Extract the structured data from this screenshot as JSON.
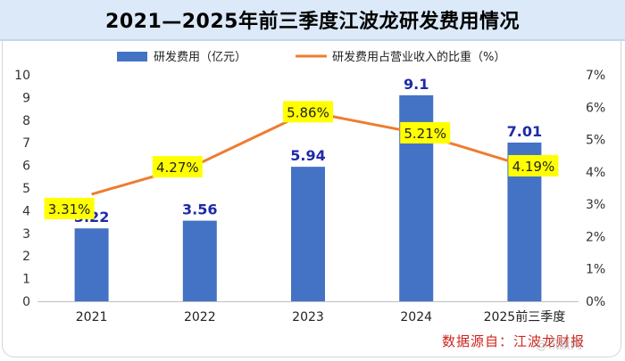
{
  "title": "2021—2025年前三季度江波龙研发费用情况",
  "source": "数据源自：江波龙财报",
  "watermark": "@讯旗网",
  "chart_data": {
    "type": "bar+line",
    "title": "2021—2025年前三季度江波龙研发费用情况",
    "categories": [
      "2021",
      "2022",
      "2023",
      "2024",
      "2025前三季度"
    ],
    "series": [
      {
        "name": "研发费用（亿元）",
        "type": "bar",
        "axis": "left",
        "values": [
          3.22,
          3.56,
          5.94,
          9.1,
          7.01
        ],
        "labels": [
          "3.22",
          "3.56",
          "5.94",
          "9.1",
          "7.01"
        ],
        "color": "#4472c4",
        "label_color": "#1f2aa8"
      },
      {
        "name": "研发费用占营业收入的比重（%）",
        "type": "line",
        "axis": "right",
        "values": [
          3.31,
          4.27,
          5.86,
          5.21,
          4.19
        ],
        "labels": [
          "3.31%",
          "4.27%",
          "5.86%",
          "5.21%",
          "4.19%"
        ],
        "color": "#ed7d31",
        "label_bg": "#ffff00"
      }
    ],
    "y_left": {
      "min": 0,
      "max": 10,
      "ticks": [
        "0",
        "1",
        "2",
        "3",
        "4",
        "5",
        "6",
        "7",
        "8",
        "9",
        "10"
      ]
    },
    "y_right": {
      "min": 0,
      "max": 7,
      "ticks": [
        "0%",
        "1%",
        "2%",
        "3%",
        "4%",
        "5%",
        "6%",
        "7%"
      ]
    },
    "legend": "top-center",
    "grid": false
  }
}
